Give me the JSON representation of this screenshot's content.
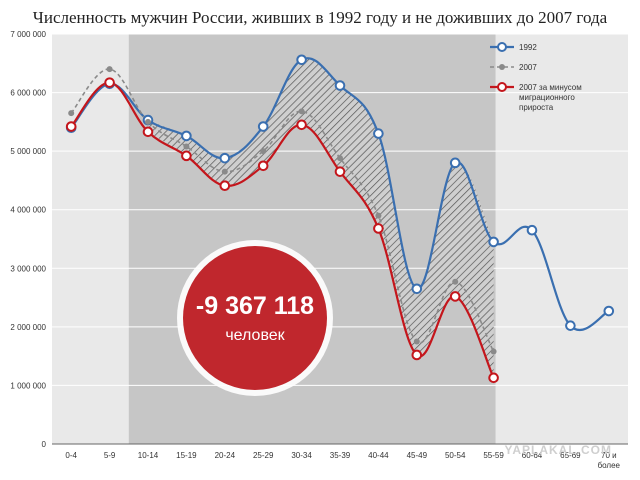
{
  "chart_data": {
    "type": "line",
    "title": "Численность мужчин России, живших в 1992 году и не доживших до 2007 года",
    "categories": [
      "0-4",
      "5-9",
      "10-14",
      "15-19",
      "20-24",
      "25-29",
      "30-34",
      "35-39",
      "40-44",
      "45-49",
      "50-54",
      "55-59",
      "60-64",
      "65-69",
      "70 и более"
    ],
    "yticks": [
      "0",
      "1 000 000",
      "2 000 000",
      "3 000 000",
      "4 000 000",
      "5 000 000",
      "6 000 000",
      "7 000 000"
    ],
    "ylim": [
      0,
      7000000
    ],
    "grid": true,
    "legend_position": "top-right",
    "shaded_range": [
      "10-14",
      "55-59"
    ],
    "series": [
      {
        "name": "1992",
        "color": "#3a6fb0",
        "style": "solid-hollow-markers",
        "values": [
          5400000,
          6150000,
          5530000,
          5260000,
          4880000,
          5420000,
          6560000,
          6120000,
          5300000,
          2650000,
          4800000,
          3450000,
          3650000,
          2020000,
          2270000
        ]
      },
      {
        "name": "2007",
        "color": "#8a8a8a",
        "style": "dashed-dot-markers",
        "values": [
          5650000,
          6400000,
          5500000,
          5080000,
          4650000,
          5000000,
          5680000,
          4880000,
          3900000,
          1750000,
          2770000,
          1580000,
          null,
          null,
          null
        ]
      },
      {
        "name": "2007 за минусом миграционного прироста",
        "color": "#c4161c",
        "style": "solid-hollow-markers",
        "values": [
          5420000,
          6170000,
          5330000,
          4920000,
          4410000,
          4750000,
          5450000,
          4650000,
          3680000,
          1520000,
          2520000,
          1130000,
          null,
          null,
          null
        ]
      }
    ],
    "annotation": {
      "value": "-9 367 118",
      "label": "человек",
      "color": "#c0272d"
    }
  },
  "watermark": "YAPLAKAL.COM"
}
